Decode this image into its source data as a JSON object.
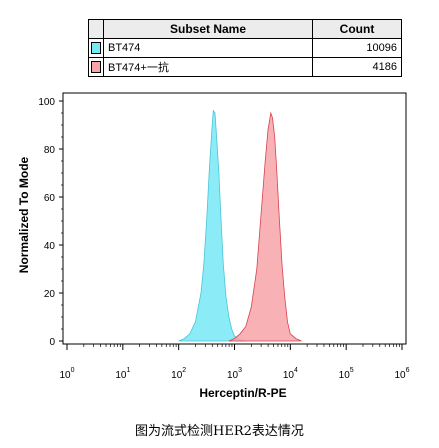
{
  "legend": {
    "header_subset": "Subset Name",
    "header_count": "Count",
    "rows": [
      {
        "name": "BT474",
        "count": "10096",
        "color": "#77e8f5"
      },
      {
        "name": "BT474+一抗",
        "count": "4186",
        "color": "#f7a3a8"
      }
    ]
  },
  "chart_data": {
    "type": "area",
    "xlabel": "Herceptin/R-PE",
    "ylabel": "Normalized To Mode",
    "x_scale": "log",
    "x_ticks": [
      "0",
      "1",
      "2",
      "3",
      "4",
      "5",
      "6"
    ],
    "x_tick_base": "10",
    "y_ticks": [
      0,
      20,
      40,
      60,
      80,
      100
    ],
    "ylim": [
      0,
      100
    ],
    "xlim": [
      0,
      6
    ],
    "grid": false,
    "series": [
      {
        "name": "BT474",
        "color": "#77e8f5",
        "stroke": "#4cc4d8",
        "x": [
          2.0,
          2.1,
          2.2,
          2.3,
          2.4,
          2.45,
          2.5,
          2.55,
          2.6,
          2.62,
          2.65,
          2.68,
          2.72,
          2.76,
          2.8,
          2.85,
          2.9,
          2.95,
          3.0,
          3.1,
          3.2
        ],
        "y": [
          0,
          1,
          3,
          8,
          20,
          32,
          50,
          72,
          90,
          96,
          95,
          85,
          70,
          50,
          32,
          18,
          10,
          5,
          2,
          0.5,
          0
        ]
      },
      {
        "name": "BT474+一抗",
        "color": "#f7a3a8",
        "stroke": "#d84050",
        "x": [
          2.9,
          3.0,
          3.1,
          3.2,
          3.3,
          3.4,
          3.45,
          3.5,
          3.55,
          3.6,
          3.65,
          3.68,
          3.72,
          3.76,
          3.8,
          3.85,
          3.9,
          3.95,
          4.0,
          4.1,
          4.2
        ],
        "y": [
          0,
          1,
          3,
          6,
          14,
          30,
          45,
          60,
          75,
          88,
          95,
          93,
          85,
          70,
          52,
          32,
          18,
          8,
          3,
          1,
          0
        ]
      }
    ]
  },
  "caption": "图为流式检测HER2表达情况"
}
